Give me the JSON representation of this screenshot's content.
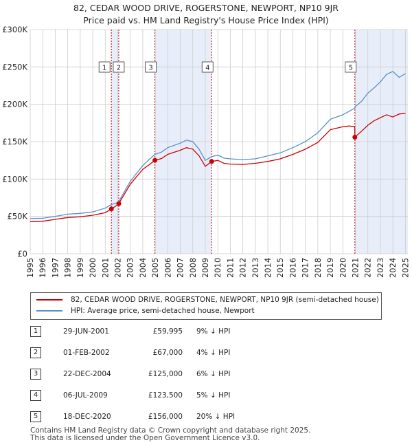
{
  "title_line1": "82, CEDAR WOOD DRIVE, ROGERSTONE, NEWPORT, NP10 9JR",
  "title_line2": "Price paid vs. HM Land Registry's House Price Index (HPI)",
  "colors": {
    "property": "#cc0000",
    "hpi": "#5b8fc7",
    "shade": "#e8eef9",
    "grid": "#cccccc"
  },
  "legend": {
    "property": "82, CEDAR WOOD DRIVE, ROGERSTONE, NEWPORT, NP10 9JR (semi-detached house)",
    "hpi": "HPI: Average price, semi-detached house, Newport"
  },
  "sales": [
    {
      "num": "1",
      "date": "29-JUN-2001",
      "price": "£59,995",
      "hpi": "9% ↓ HPI",
      "year": 2001.49,
      "value": 59995
    },
    {
      "num": "2",
      "date": "01-FEB-2002",
      "price": "£67,000",
      "hpi": "4% ↓ HPI",
      "year": 2002.08,
      "value": 67000
    },
    {
      "num": "3",
      "date": "22-DEC-2004",
      "price": "£125,000",
      "hpi": "6% ↓ HPI",
      "year": 2004.97,
      "value": 125000
    },
    {
      "num": "4",
      "date": "06-JUL-2009",
      "price": "£123,500",
      "hpi": "5% ↓ HPI",
      "year": 2009.51,
      "value": 123500
    },
    {
      "num": "5",
      "date": "18-DEC-2020",
      "price": "£156,000",
      "hpi": "20% ↓ HPI",
      "year": 2020.96,
      "value": 156000
    }
  ],
  "footer_line1": "Contains HM Land Registry data © Crown copyright and database right 2025.",
  "footer_line2": "This data is licensed under the Open Government Licence v3.0.",
  "chart_data": {
    "type": "line",
    "title": "Price paid vs. HM Land Registry's House Price Index (HPI)",
    "xlabel": "",
    "ylabel": "",
    "xlim": [
      1995,
      2025.2
    ],
    "ylim": [
      0,
      300000
    ],
    "x_ticks": [
      1995,
      1996,
      1997,
      1998,
      1999,
      2000,
      2001,
      2002,
      2003,
      2004,
      2005,
      2006,
      2007,
      2008,
      2009,
      2010,
      2011,
      2012,
      2013,
      2014,
      2015,
      2016,
      2017,
      2018,
      2019,
      2020,
      2021,
      2022,
      2023,
      2024,
      2025
    ],
    "y_ticks": [
      0,
      50000,
      100000,
      150000,
      200000,
      250000,
      300000
    ],
    "y_tick_labels": [
      "£0",
      "£50K",
      "£100K",
      "£150K",
      "£200K",
      "£250K",
      "£300K"
    ],
    "shaded_ranges": [
      [
        2001.49,
        2002.08
      ],
      [
        2004.97,
        2009.51
      ],
      [
        2020.96,
        2025.2
      ]
    ],
    "series": [
      {
        "name": "HPI: Average price, semi-detached house, Newport",
        "x": [
          1995,
          1996,
          1997,
          1998,
          1999,
          2000,
          2001,
          2001.49,
          2002,
          2002.08,
          2003,
          2004,
          2004.5,
          2004.97,
          2005.5,
          2006,
          2007,
          2007.5,
          2008,
          2008.5,
          2009,
          2009.51,
          2010,
          2010.5,
          2011,
          2012,
          2013,
          2014,
          2015,
          2016,
          2017,
          2018,
          2019,
          2020,
          2020.96,
          2021,
          2021.5,
          2022,
          2022.5,
          2023,
          2023.5,
          2024,
          2024.5,
          2025
        ],
        "y": [
          47000,
          47500,
          50000,
          53000,
          54000,
          56000,
          61000,
          65900,
          68500,
          69800,
          97000,
          118000,
          126000,
          133000,
          136000,
          142000,
          148000,
          152000,
          150000,
          140000,
          125000,
          130000,
          132000,
          128000,
          127000,
          126000,
          127000,
          131000,
          135000,
          142000,
          150000,
          162000,
          180000,
          186000,
          195000,
          197000,
          204000,
          215000,
          222000,
          230000,
          240000,
          244000,
          236000,
          241000
        ]
      },
      {
        "name": "82, CEDAR WOOD DRIVE, ROGERSTONE, NEWPORT, NP10 9JR (semi-detached house)",
        "x": [
          1995,
          1996,
          1997,
          1998,
          1999,
          2000,
          2001,
          2001.49,
          2002,
          2002.08,
          2003,
          2004,
          2004.5,
          2004.97,
          2005.5,
          2006,
          2007,
          2007.5,
          2008,
          2008.5,
          2009,
          2009.51,
          2010,
          2010.5,
          2011,
          2012,
          2013,
          2014,
          2015,
          2016,
          2017,
          2018,
          2019,
          2020,
          2020.5,
          2020.95,
          2020.96,
          2021.5,
          2022,
          2022.5,
          2023,
          2023.5,
          2024,
          2024.5,
          2025
        ],
        "y": [
          43000,
          43500,
          46000,
          48500,
          49500,
          51500,
          55000,
          59995,
          65500,
          67000,
          93000,
          113000,
          119000,
          125000,
          127500,
          133000,
          138500,
          142000,
          140000,
          131000,
          117000,
          123500,
          125000,
          121000,
          120000,
          119500,
          121000,
          123500,
          127000,
          133000,
          140000,
          149000,
          166000,
          170000,
          171000,
          170000,
          156000,
          164000,
          172000,
          178000,
          182000,
          186000,
          183000,
          187000,
          188000
        ]
      }
    ]
  }
}
